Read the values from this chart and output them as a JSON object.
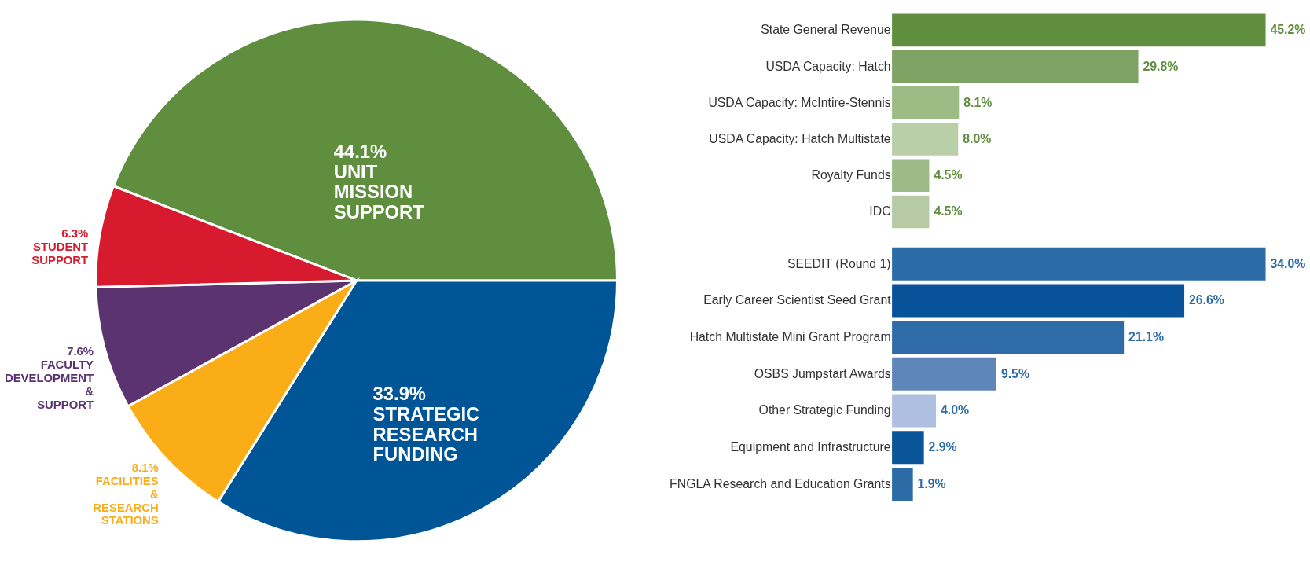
{
  "chart_data": [
    {
      "type": "pie",
      "categories": [
        "UNIT MISSION SUPPORT",
        "STRATEGIC RESEARCH FUNDING",
        "FACILITIES & RESEARCH STATIONS",
        "FACULTY DEVELOPMENT & SUPPORT",
        "STUDENT SUPPORT"
      ],
      "values": [
        44.1,
        33.9,
        8.1,
        7.6,
        6.3
      ],
      "colors": [
        "#5e8e3e",
        "#005596",
        "#fbad18",
        "#5a3370",
        "#d71a2d"
      ],
      "value_labels": [
        "44.1%",
        "33.9%",
        "8.1%",
        "7.6%",
        "6.3%"
      ],
      "legend": false
    },
    {
      "type": "bar",
      "orientation": "horizontal",
      "categories": [
        "State General Revenue",
        "USDA Capacity: Hatch",
        "USDA Capacity: McIntire-Stennis",
        "USDA Capacity: Hatch Multistate",
        "Royalty Funds",
        "IDC"
      ],
      "values": [
        45.2,
        29.8,
        8.1,
        8.0,
        4.5,
        4.5
      ],
      "colors": [
        "#5f8f3e",
        "#7ea364",
        "#9dbb85",
        "#b9cfa7",
        "#9eba87",
        "#b6cba5"
      ],
      "value_labels": [
        "45.2%",
        "29.8%",
        "8.1%",
        "8.0%",
        "4.5%",
        "4.5%"
      ]
    },
    {
      "type": "bar",
      "orientation": "horizontal",
      "categories": [
        "SEEDIT (Round 1)",
        "Early Career Scientist Seed Grant",
        "Hatch Multistate Mini Grant Program",
        "OSBS Jumpstart Awards",
        "Other Strategic Funding",
        "Equipment and Infrastructure",
        "FNGLA Research and Education Grants"
      ],
      "values": [
        34.0,
        26.6,
        21.1,
        9.5,
        4.0,
        2.9,
        1.9
      ],
      "colors": [
        "#2b6ca8",
        "#08529a",
        "#2e6ba7",
        "#5f86b9",
        "#aebfdf",
        "#0a5499",
        "#2c6ba6"
      ],
      "value_labels": [
        "34.0%",
        "26.6%",
        "21.1%",
        "9.5%",
        "4.0%",
        "2.9%",
        "1.9%"
      ]
    }
  ]
}
